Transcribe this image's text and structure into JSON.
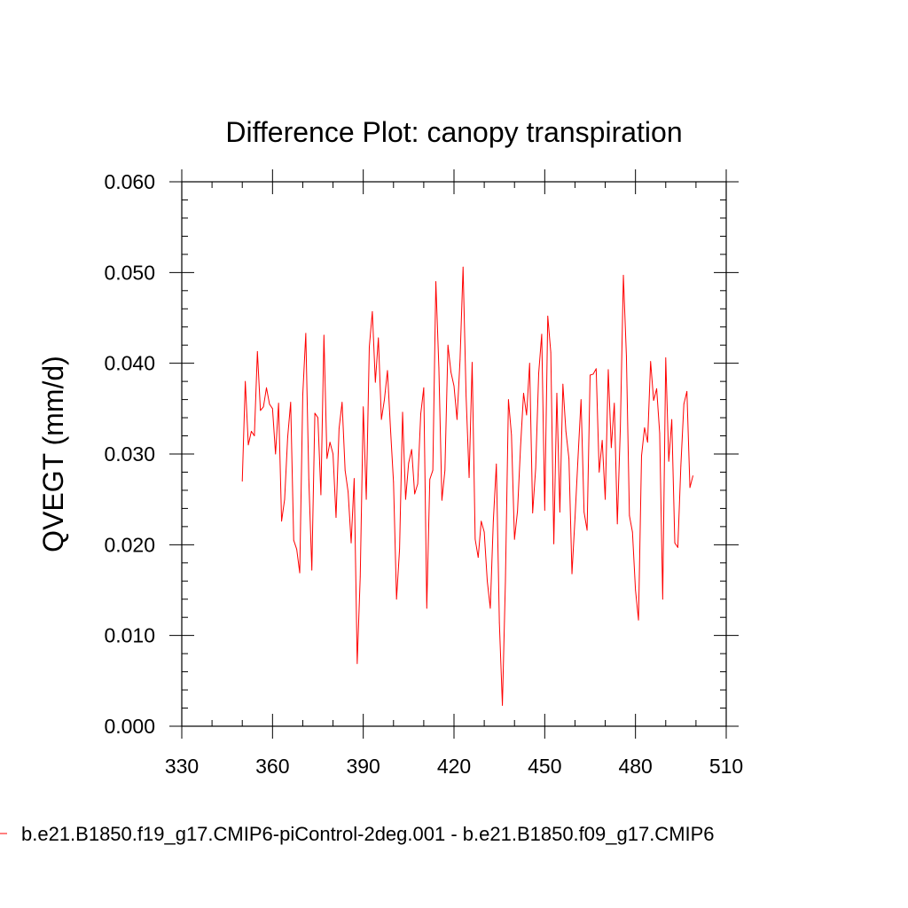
{
  "chart_data": {
    "type": "line",
    "title": "Difference Plot: canopy transpiration",
    "xlabel": "",
    "ylabel": "QVEGT  (mm/d)",
    "xlim": [
      330,
      510
    ],
    "ylim": [
      0.0,
      0.06
    ],
    "xticks": [
      "330",
      "360",
      "390",
      "420",
      "450",
      "480",
      "510"
    ],
    "yticks": [
      "0.000",
      "0.010",
      "0.020",
      "0.030",
      "0.040",
      "0.050",
      "0.060"
    ],
    "grid": false,
    "legend_position": "bottom",
    "series": [
      {
        "name": "b.e21.B1850.f19_g17.CMIP6-piControl-2deg.001 - b.e21.B1850.f09_g17.CMIP6",
        "color": "#ff0000",
        "x": [
          350,
          351,
          352,
          353,
          354,
          355,
          356,
          357,
          358,
          359,
          360,
          361,
          362,
          363,
          364,
          365,
          366,
          367,
          368,
          369,
          370,
          371,
          372,
          373,
          374,
          375,
          376,
          377,
          378,
          379,
          380,
          381,
          382,
          383,
          384,
          385,
          386,
          387,
          388,
          389,
          390,
          391,
          392,
          393,
          394,
          395,
          396,
          397,
          398,
          399,
          400,
          401,
          402,
          403,
          404,
          405,
          406,
          407,
          408,
          409,
          410,
          411,
          412,
          413,
          414,
          415,
          416,
          417,
          418,
          419,
          420,
          421,
          422,
          423,
          424,
          425,
          426,
          427,
          428,
          429,
          430,
          431,
          432,
          433,
          434,
          435,
          436,
          437,
          438,
          439,
          440,
          441,
          442,
          443,
          444,
          445,
          446,
          447,
          448,
          449,
          450,
          451,
          452,
          453,
          454,
          455,
          456,
          457,
          458,
          459,
          460,
          461,
          462,
          463,
          464,
          465,
          466,
          467,
          468,
          469,
          470,
          471,
          472,
          473,
          474,
          475,
          476,
          477,
          478,
          479,
          480,
          481,
          482,
          483,
          484,
          485,
          486,
          487,
          488,
          489,
          490,
          491,
          492,
          493,
          494,
          495,
          496,
          497,
          498,
          499
        ],
        "values": [
          0.027,
          0.038,
          0.031,
          0.0325,
          0.032,
          0.0413,
          0.0348,
          0.0352,
          0.0373,
          0.0355,
          0.035,
          0.03,
          0.0356,
          0.0226,
          0.025,
          0.0318,
          0.0357,
          0.0205,
          0.0195,
          0.0169,
          0.0365,
          0.0433,
          0.0272,
          0.0172,
          0.0345,
          0.034,
          0.0255,
          0.0431,
          0.0295,
          0.0313,
          0.03,
          0.023,
          0.0328,
          0.0357,
          0.0282,
          0.0258,
          0.0202,
          0.0273,
          0.0069,
          0.0165,
          0.0352,
          0.025,
          0.0418,
          0.0457,
          0.0379,
          0.0428,
          0.0338,
          0.036,
          0.0392,
          0.0328,
          0.0269,
          0.014,
          0.0195,
          0.0346,
          0.025,
          0.029,
          0.0305,
          0.0256,
          0.0267,
          0.0344,
          0.0373,
          0.013,
          0.0272,
          0.0282,
          0.049,
          0.0395,
          0.0249,
          0.0282,
          0.042,
          0.039,
          0.0375,
          0.0338,
          0.0404,
          0.0506,
          0.0364,
          0.0274,
          0.0401,
          0.0206,
          0.0186,
          0.0226,
          0.0214,
          0.016,
          0.013,
          0.0226,
          0.0289,
          0.0114,
          0.0023,
          0.016,
          0.036,
          0.0321,
          0.0206,
          0.0237,
          0.0308,
          0.0367,
          0.0343,
          0.04,
          0.0235,
          0.0284,
          0.0389,
          0.0432,
          0.0238,
          0.0452,
          0.0412,
          0.0201,
          0.0367,
          0.0236,
          0.0377,
          0.0325,
          0.0295,
          0.0168,
          0.0229,
          0.0296,
          0.036,
          0.0236,
          0.0216,
          0.0387,
          0.0388,
          0.0394,
          0.028,
          0.0315,
          0.025,
          0.0393,
          0.0307,
          0.0356,
          0.0223,
          0.0329,
          0.0497,
          0.0408,
          0.0232,
          0.0214,
          0.015,
          0.0117,
          0.0298,
          0.0329,
          0.0313,
          0.0402,
          0.0359,
          0.0372,
          0.0323,
          0.014,
          0.0406,
          0.0292,
          0.0338,
          0.0202,
          0.0197,
          0.0287,
          0.0355,
          0.0369,
          0.0263,
          0.0276
        ]
      }
    ]
  }
}
